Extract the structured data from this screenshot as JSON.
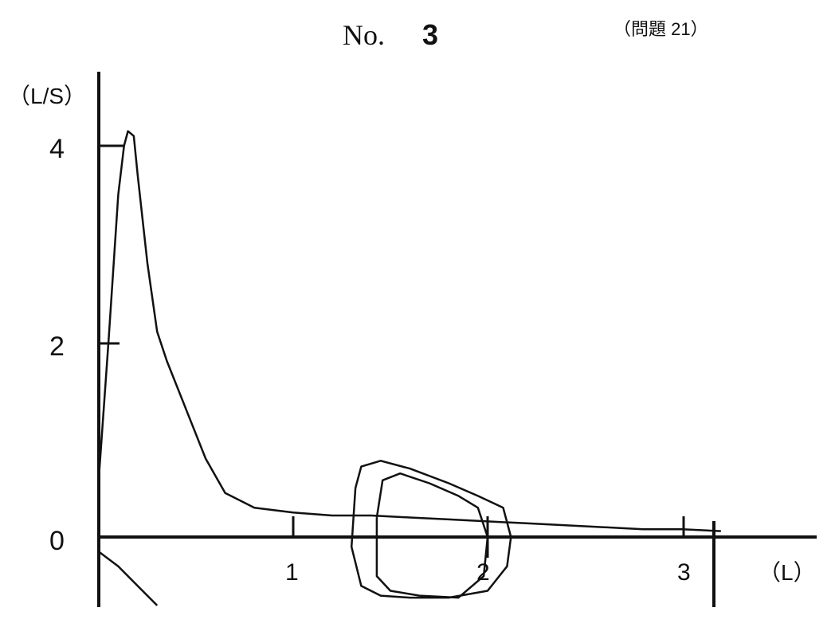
{
  "header": {
    "no_label": "No.",
    "no_value": "3",
    "question_ref": "（問題 21）"
  },
  "chart_data": {
    "type": "line",
    "title": "",
    "xlabel": "（L）",
    "ylabel": "（L/S）",
    "xlim": [
      0,
      3.3
    ],
    "ylim": [
      -0.7,
      4.6
    ],
    "x_ticks": [
      "1",
      "2",
      "3"
    ],
    "y_ticks": [
      "4",
      "2",
      "0"
    ],
    "grid": false,
    "series": [
      {
        "role": "forced expiration (flow-volume)",
        "x": [
          0.0,
          0.05,
          0.1,
          0.13,
          0.15,
          0.18,
          0.2,
          0.25,
          0.3,
          0.35,
          0.45,
          0.55,
          0.65,
          0.8,
          1.0,
          1.2,
          1.4,
          1.6,
          1.8,
          2.0,
          2.2,
          2.4,
          2.6,
          2.8,
          3.0,
          3.2
        ],
        "y": [
          0.6,
          2.0,
          3.5,
          4.0,
          4.15,
          4.1,
          3.7,
          2.8,
          2.1,
          1.8,
          1.3,
          0.8,
          0.45,
          0.3,
          0.25,
          0.22,
          0.22,
          0.2,
          0.18,
          0.16,
          0.14,
          0.12,
          0.1,
          0.08,
          0.08,
          0.06
        ]
      },
      {
        "role": "tidal loop 1",
        "x": [
          1.32,
          1.35,
          1.45,
          1.6,
          1.8,
          1.95,
          2.08,
          2.12,
          2.1,
          2.0,
          1.8,
          1.6,
          1.45,
          1.35,
          1.3,
          1.32
        ],
        "y": [
          0.5,
          0.72,
          0.78,
          0.7,
          0.55,
          0.42,
          0.3,
          0.0,
          -0.3,
          -0.55,
          -0.62,
          -0.62,
          -0.6,
          -0.5,
          -0.1,
          0.5
        ]
      },
      {
        "role": "tidal loop 2",
        "x": [
          1.43,
          1.46,
          1.55,
          1.7,
          1.85,
          1.95,
          2.0,
          1.98,
          1.85,
          1.65,
          1.5,
          1.43,
          1.43
        ],
        "y": [
          0.2,
          0.58,
          0.65,
          0.55,
          0.42,
          0.3,
          0.0,
          -0.4,
          -0.62,
          -0.6,
          -0.55,
          -0.4,
          0.2
        ]
      },
      {
        "role": "inspiration tail",
        "x": [
          0.0,
          0.1,
          0.2,
          0.3
        ],
        "y": [
          -0.15,
          -0.3,
          -0.5,
          -0.7
        ]
      }
    ]
  }
}
